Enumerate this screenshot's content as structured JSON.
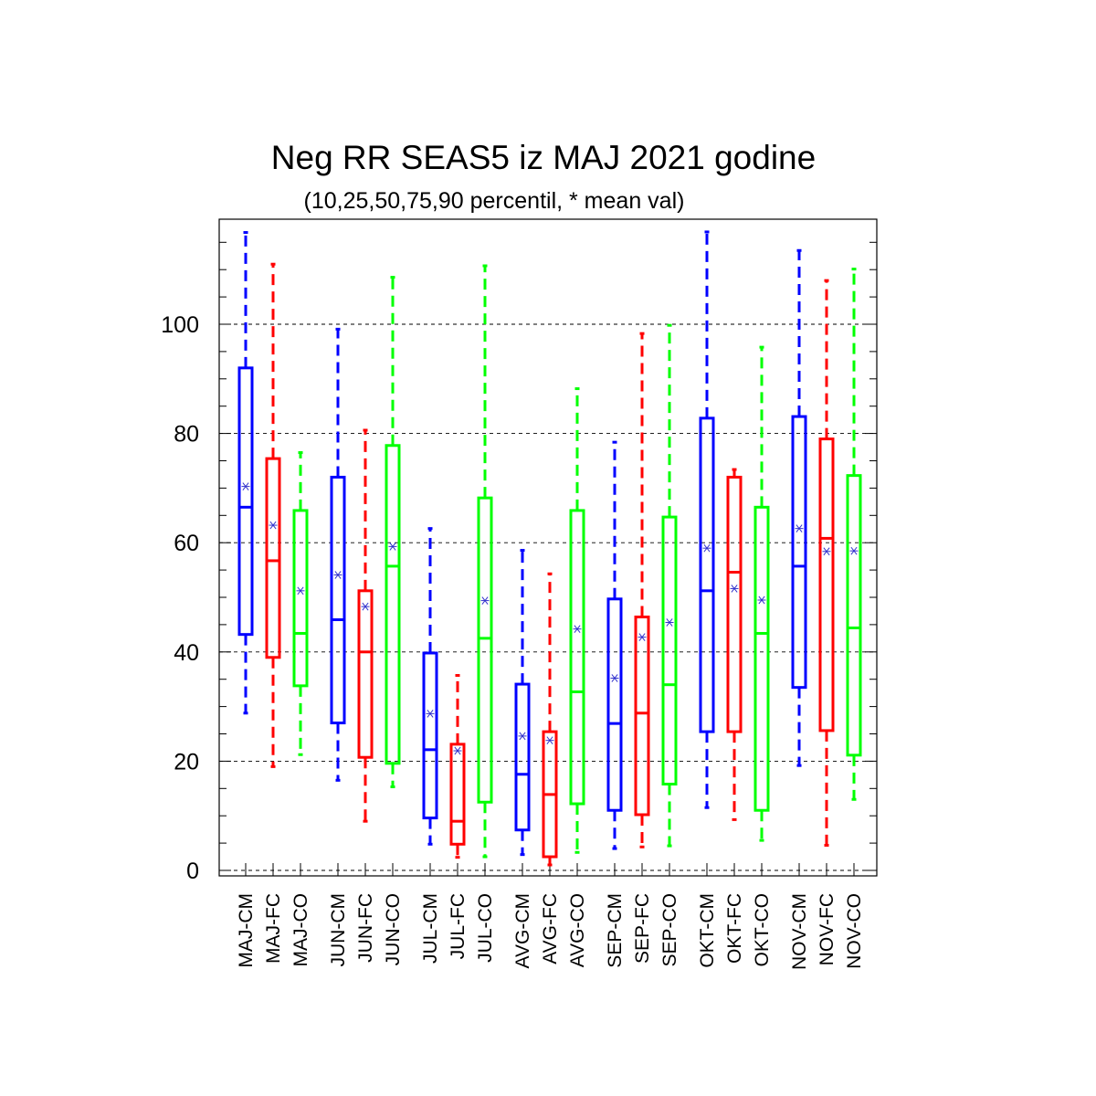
{
  "chart_data": {
    "type": "box",
    "title": "Neg RR SEAS5 iz MAJ 2021 godine",
    "subtitle": "(10,25,50,75,90 percentil, * mean val)",
    "ylim": [
      -1,
      120
    ],
    "yticks": [
      0,
      20,
      40,
      60,
      80,
      100
    ],
    "grid": "y-dashed",
    "colors": {
      "CM": "#0000ff",
      "FC": "#ff0000",
      "CO": "#00ff00",
      "mean_marker": "#3333cc"
    },
    "boxes": [
      {
        "label": "MAJ-CM",
        "kind": "CM",
        "p10": 28.8,
        "p25": 43.2,
        "p50": 66.5,
        "p75": 92.0,
        "p90": 116.8,
        "mean": 70.3
      },
      {
        "label": "MAJ-FC",
        "kind": "FC",
        "p10": 19.0,
        "p25": 39.0,
        "p50": 56.7,
        "p75": 75.4,
        "p90": 111.0,
        "mean": 63.2
      },
      {
        "label": "MAJ-CO",
        "kind": "CO",
        "p10": 21.2,
        "p25": 33.8,
        "p50": 43.4,
        "p75": 65.9,
        "p90": 76.5,
        "mean": 51.2
      },
      {
        "label": "JUN-CM",
        "kind": "CM",
        "p10": 16.5,
        "p25": 27.0,
        "p50": 45.9,
        "p75": 72.0,
        "p90": 99.1,
        "mean": 54.1
      },
      {
        "label": "JUN-FC",
        "kind": "FC",
        "p10": 9.0,
        "p25": 20.7,
        "p50": 40.0,
        "p75": 51.2,
        "p90": 80.6,
        "mean": 48.3
      },
      {
        "label": "JUN-CO",
        "kind": "CO",
        "p10": 15.3,
        "p25": 19.6,
        "p50": 55.7,
        "p75": 77.8,
        "p90": 108.6,
        "mean": 59.3
      },
      {
        "label": "JUL-CM",
        "kind": "CM",
        "p10": 4.8,
        "p25": 9.6,
        "p50": 22.1,
        "p75": 39.8,
        "p90": 62.6,
        "mean": 28.7
      },
      {
        "label": "JUL-FC",
        "kind": "FC",
        "p10": 2.4,
        "p25": 4.8,
        "p50": 9.0,
        "p75": 23.1,
        "p90": 35.7,
        "mean": 21.9
      },
      {
        "label": "JUL-CO",
        "kind": "CO",
        "p10": 2.5,
        "p25": 12.5,
        "p50": 42.5,
        "p75": 68.2,
        "p90": 110.7,
        "mean": 49.4
      },
      {
        "label": "AVG-CM",
        "kind": "CM",
        "p10": 2.9,
        "p25": 7.4,
        "p50": 17.6,
        "p75": 34.1,
        "p90": 58.6,
        "mean": 24.6
      },
      {
        "label": "AVG-FC",
        "kind": "FC",
        "p10": 1.0,
        "p25": 2.5,
        "p50": 13.9,
        "p75": 25.4,
        "p90": 54.3,
        "mean": 23.8
      },
      {
        "label": "AVG-CO",
        "kind": "CO",
        "p10": 3.3,
        "p25": 12.2,
        "p50": 32.7,
        "p75": 65.9,
        "p90": 88.2,
        "mean": 44.2
      },
      {
        "label": "SEP-CM",
        "kind": "CM",
        "p10": 4.0,
        "p25": 11.0,
        "p50": 26.9,
        "p75": 49.7,
        "p90": 78.4,
        "mean": 35.2
      },
      {
        "label": "SEP-FC",
        "kind": "FC",
        "p10": 4.3,
        "p25": 10.2,
        "p50": 28.8,
        "p75": 46.4,
        "p90": 98.3,
        "mean": 42.7
      },
      {
        "label": "SEP-CO",
        "kind": "CO",
        "p10": 4.5,
        "p25": 15.8,
        "p50": 34.0,
        "p75": 64.7,
        "p90": 99.8,
        "mean": 45.4
      },
      {
        "label": "OKT-CM",
        "kind": "CM",
        "p10": 11.5,
        "p25": 25.4,
        "p50": 51.2,
        "p75": 82.8,
        "p90": 116.9,
        "mean": 59.0
      },
      {
        "label": "OKT-FC",
        "kind": "FC",
        "p10": 9.3,
        "p25": 25.4,
        "p50": 54.6,
        "p75": 72.0,
        "p90": 73.4,
        "mean": 51.6
      },
      {
        "label": "OKT-CO",
        "kind": "CO",
        "p10": 5.5,
        "p25": 11.0,
        "p50": 43.4,
        "p75": 66.5,
        "p90": 95.8,
        "mean": 49.5
      },
      {
        "label": "NOV-CM",
        "kind": "CM",
        "p10": 19.2,
        "p25": 33.5,
        "p50": 55.7,
        "p75": 83.1,
        "p90": 113.5,
        "mean": 62.6
      },
      {
        "label": "NOV-FC",
        "kind": "FC",
        "p10": 4.6,
        "p25": 25.6,
        "p50": 60.8,
        "p75": 79.0,
        "p90": 108.0,
        "mean": 58.4
      },
      {
        "label": "NOV-CO",
        "kind": "CO",
        "p10": 13.0,
        "p25": 21.1,
        "p50": 44.4,
        "p75": 72.3,
        "p90": 110.1,
        "mean": 58.5
      }
    ]
  }
}
